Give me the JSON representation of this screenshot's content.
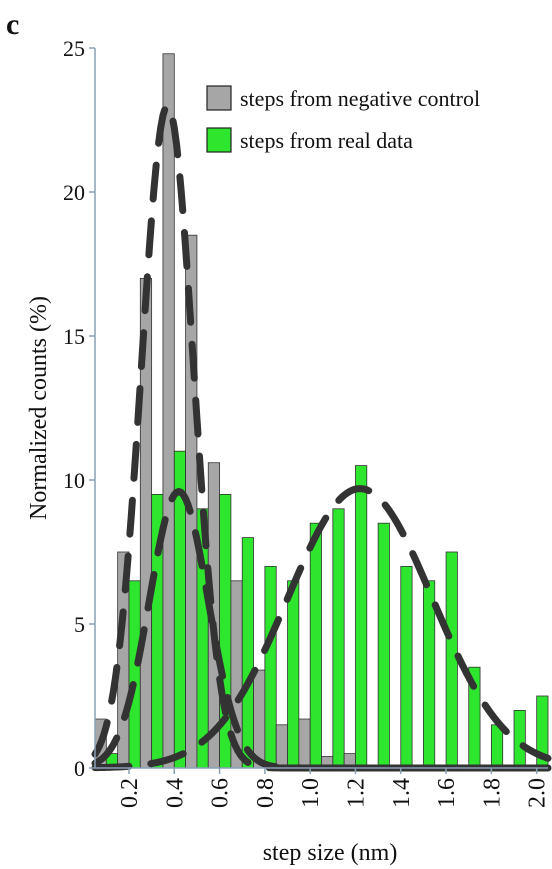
{
  "panel_label": "c",
  "chart_data": {
    "type": "bar",
    "title": "",
    "xlabel": "step size (nm)",
    "ylabel": "Normalized counts (%)",
    "xlim": [
      0.05,
      2.05
    ],
    "ylim": [
      0,
      25
    ],
    "yticks": [
      0,
      5,
      10,
      15,
      20,
      25
    ],
    "xticks": [
      "0.2",
      "0.4",
      "0.6",
      "0.8",
      "1.0",
      "1.2",
      "1.4",
      "1.6",
      "1.8",
      "2.0"
    ],
    "xtick_values": [
      0.2,
      0.4,
      0.6,
      0.8,
      1.0,
      1.2,
      1.4,
      1.6,
      1.8,
      2.0
    ],
    "grid": false,
    "legend_position": "top-right",
    "bin_centers": [
      0.1,
      0.2,
      0.3,
      0.4,
      0.5,
      0.6,
      0.7,
      0.8,
      0.9,
      1.0,
      1.1,
      1.2,
      1.3,
      1.4,
      1.5,
      1.6,
      1.7,
      1.8,
      1.9,
      2.0
    ],
    "series": [
      {
        "name": "steps from negative control",
        "color": "#a6a6a6",
        "values": [
          1.7,
          7.5,
          17.0,
          24.8,
          18.5,
          10.6,
          6.5,
          3.4,
          1.5,
          1.7,
          0.4,
          0.5,
          0,
          0,
          0,
          0,
          0,
          0,
          0,
          0
        ]
      },
      {
        "name": "steps from real data",
        "color": "#2ee62e",
        "values": [
          0.5,
          6.5,
          9.5,
          11.0,
          9.0,
          9.5,
          8.0,
          7.0,
          6.5,
          8.5,
          9.0,
          10.5,
          8.5,
          7.0,
          6.5,
          7.5,
          3.5,
          1.5,
          2.0,
          2.5
        ]
      }
    ],
    "fit_curves": [
      {
        "series": "steps from negative control",
        "kind": "gaussian",
        "peak": 23.0,
        "center": 0.37,
        "sigma": 0.115
      },
      {
        "series": "steps from real data",
        "kind": "gaussian",
        "peak": 9.6,
        "center": 0.42,
        "sigma": 0.13
      },
      {
        "series": "steps from real data",
        "kind": "gaussian",
        "peak": 9.7,
        "center": 1.22,
        "sigma": 0.32
      }
    ]
  }
}
